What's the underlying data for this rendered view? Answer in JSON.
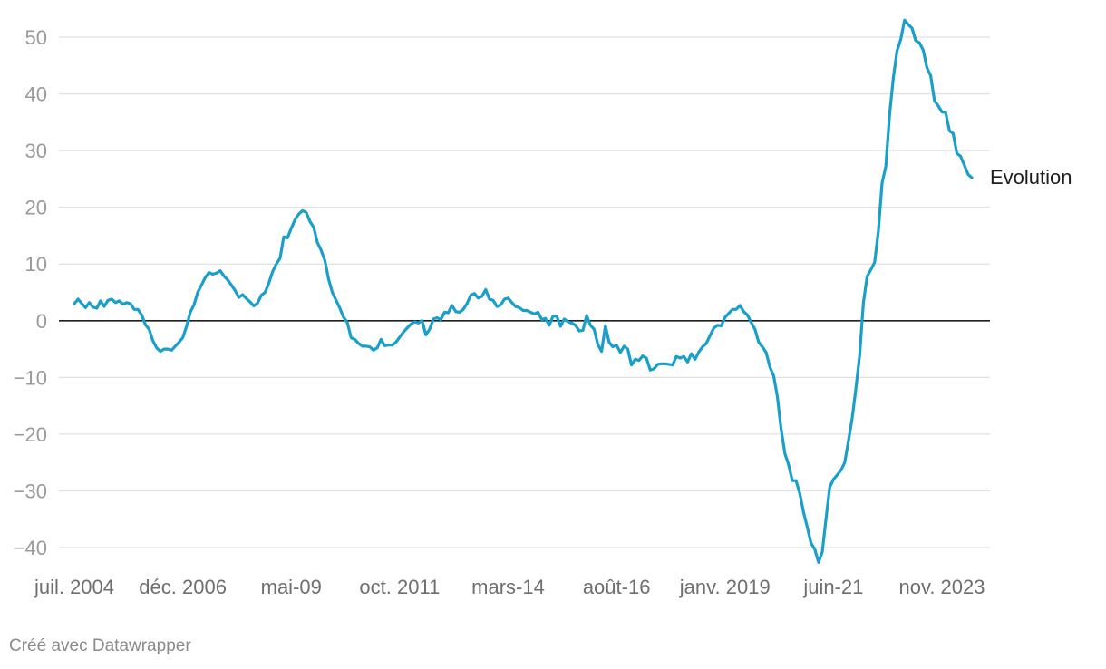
{
  "chart_data": {
    "type": "line",
    "title": "",
    "xlabel": "",
    "ylabel": "",
    "ylim": [
      -45,
      55
    ],
    "yticks": [
      50,
      40,
      30,
      20,
      10,
      0,
      -10,
      -20,
      -30,
      -40
    ],
    "ytick_labels": [
      "50",
      "40",
      "30",
      "20",
      "10",
      "0",
      "−10",
      "−20",
      "−30",
      "−40"
    ],
    "grid": true,
    "x_start": "2004-07",
    "x_end": "2024-10",
    "xticks": [
      {
        "date": "2004-07",
        "label": "juil. 2004"
      },
      {
        "date": "2006-12",
        "label": "déc. 2006"
      },
      {
        "date": "2009-05",
        "label": "mai-09"
      },
      {
        "date": "2011-10",
        "label": "oct. 2011"
      },
      {
        "date": "2014-03",
        "label": "mars-14"
      },
      {
        "date": "2016-08",
        "label": "août-16"
      },
      {
        "date": "2019-01",
        "label": "janv. 2019"
      },
      {
        "date": "2021-06",
        "label": "juin-21"
      },
      {
        "date": "2023-11",
        "label": "nov. 2023"
      }
    ],
    "series": [
      {
        "name": "Evolution",
        "color": "#1a9fcb",
        "points": [
          [
            "2004-07",
            3
          ],
          [
            "2004-08",
            3.8
          ],
          [
            "2004-09",
            3
          ],
          [
            "2004-10",
            2.3
          ],
          [
            "2004-11",
            3.2
          ],
          [
            "2004-12",
            2.4
          ],
          [
            "2005-01",
            2.2
          ],
          [
            "2005-02",
            3.5
          ],
          [
            "2005-03",
            2.5
          ],
          [
            "2005-04",
            3.6
          ],
          [
            "2005-05",
            3.8
          ],
          [
            "2005-06",
            3.2
          ],
          [
            "2005-07",
            3.5
          ],
          [
            "2005-08",
            2.9
          ],
          [
            "2005-09",
            3.2
          ],
          [
            "2005-10",
            3
          ],
          [
            "2005-11",
            2
          ],
          [
            "2005-12",
            2
          ],
          [
            "2006-01",
            1
          ],
          [
            "2006-02",
            -0.7
          ],
          [
            "2006-03",
            -1.5
          ],
          [
            "2006-04",
            -3.5
          ],
          [
            "2006-05",
            -4.8
          ],
          [
            "2006-06",
            -5.4
          ],
          [
            "2006-07",
            -5
          ],
          [
            "2006-08",
            -5
          ],
          [
            "2006-09",
            -5.2
          ],
          [
            "2006-10",
            -4.5
          ],
          [
            "2006-11",
            -3.8
          ],
          [
            "2006-12",
            -3
          ],
          [
            "2007-01",
            -1
          ],
          [
            "2007-02",
            1.5
          ],
          [
            "2007-03",
            2.8
          ],
          [
            "2007-04",
            5
          ],
          [
            "2007-05",
            6.3
          ],
          [
            "2007-06",
            7.6
          ],
          [
            "2007-07",
            8.5
          ],
          [
            "2007-08",
            8.2
          ],
          [
            "2007-09",
            8.4
          ],
          [
            "2007-10",
            8.8
          ],
          [
            "2007-11",
            7.9
          ],
          [
            "2007-12",
            7.2
          ],
          [
            "2008-01",
            6.3
          ],
          [
            "2008-02",
            5.3
          ],
          [
            "2008-03",
            4.1
          ],
          [
            "2008-04",
            4.6
          ],
          [
            "2008-05",
            3.9
          ],
          [
            "2008-06",
            3.3
          ],
          [
            "2008-07",
            2.6
          ],
          [
            "2008-08",
            3.1
          ],
          [
            "2008-09",
            4.5
          ],
          [
            "2008-10",
            5
          ],
          [
            "2008-11",
            6.6
          ],
          [
            "2008-12",
            8.6
          ],
          [
            "2009-01",
            10
          ],
          [
            "2009-02",
            11
          ],
          [
            "2009-03",
            14.8
          ],
          [
            "2009-04",
            14.6
          ],
          [
            "2009-05",
            16.3
          ],
          [
            "2009-06",
            17.8
          ],
          [
            "2009-07",
            18.8
          ],
          [
            "2009-08",
            19.4
          ],
          [
            "2009-09",
            19.1
          ],
          [
            "2009-10",
            17.5
          ],
          [
            "2009-11",
            16.5
          ],
          [
            "2009-12",
            13.8
          ],
          [
            "2010-01",
            12.4
          ],
          [
            "2010-02",
            10.6
          ],
          [
            "2010-03",
            7.3
          ],
          [
            "2010-04",
            5
          ],
          [
            "2010-05",
            3.6
          ],
          [
            "2010-06",
            2.2
          ],
          [
            "2010-07",
            0.6
          ],
          [
            "2010-08",
            -0.3
          ],
          [
            "2010-09",
            -3
          ],
          [
            "2010-10",
            -3.3
          ],
          [
            "2010-11",
            -4
          ],
          [
            "2010-12",
            -4.5
          ],
          [
            "2011-01",
            -4.5
          ],
          [
            "2011-02",
            -4.6
          ],
          [
            "2011-03",
            -5.2
          ],
          [
            "2011-04",
            -4.8
          ],
          [
            "2011-05",
            -3.3
          ],
          [
            "2011-06",
            -4.4
          ],
          [
            "2011-07",
            -4.3
          ],
          [
            "2011-08",
            -4.3
          ],
          [
            "2011-09",
            -3.8
          ],
          [
            "2011-10",
            -2.9
          ],
          [
            "2011-11",
            -2
          ],
          [
            "2011-12",
            -1.3
          ],
          [
            "2012-01",
            -0.6
          ],
          [
            "2012-02",
            -0.2
          ],
          [
            "2012-03",
            -0.4
          ],
          [
            "2012-04",
            0
          ],
          [
            "2012-05",
            -2.5
          ],
          [
            "2012-06",
            -1.5
          ],
          [
            "2012-07",
            0.3
          ],
          [
            "2012-08",
            0.5
          ],
          [
            "2012-09",
            0.2
          ],
          [
            "2012-10",
            1.5
          ],
          [
            "2012-11",
            1.4
          ],
          [
            "2012-12",
            2.7
          ],
          [
            "2013-01",
            1.6
          ],
          [
            "2013-02",
            1.5
          ],
          [
            "2013-03",
            2
          ],
          [
            "2013-04",
            3
          ],
          [
            "2013-05",
            4.5
          ],
          [
            "2013-06",
            4.8
          ],
          [
            "2013-07",
            4
          ],
          [
            "2013-08",
            4.3
          ],
          [
            "2013-09",
            5.5
          ],
          [
            "2013-10",
            3.8
          ],
          [
            "2013-11",
            3.6
          ],
          [
            "2013-12",
            2.5
          ],
          [
            "2014-01",
            2.8
          ],
          [
            "2014-02",
            3.8
          ],
          [
            "2014-03",
            4
          ],
          [
            "2014-04",
            3.2
          ],
          [
            "2014-05",
            2.5
          ],
          [
            "2014-06",
            2.3
          ],
          [
            "2014-07",
            1.8
          ],
          [
            "2014-08",
            1.8
          ],
          [
            "2014-09",
            1.5
          ],
          [
            "2014-10",
            1.2
          ],
          [
            "2014-11",
            1.5
          ],
          [
            "2014-12",
            0.2
          ],
          [
            "2015-01",
            0.4
          ],
          [
            "2015-02",
            -0.8
          ],
          [
            "2015-03",
            0.8
          ],
          [
            "2015-04",
            0.8
          ],
          [
            "2015-05",
            -1
          ],
          [
            "2015-06",
            0.3
          ],
          [
            "2015-07",
            -0.2
          ],
          [
            "2015-08",
            -0.4
          ],
          [
            "2015-09",
            -0.8
          ],
          [
            "2015-10",
            -1.8
          ],
          [
            "2015-11",
            -1.7
          ],
          [
            "2015-12",
            0.9
          ],
          [
            "2016-01",
            -0.8
          ],
          [
            "2016-02",
            -1.5
          ],
          [
            "2016-03",
            -4.2
          ],
          [
            "2016-04",
            -5.4
          ],
          [
            "2016-05",
            -0.9
          ],
          [
            "2016-06",
            -3.8
          ],
          [
            "2016-07",
            -4.6
          ],
          [
            "2016-08",
            -4.3
          ],
          [
            "2016-09",
            -5.6
          ],
          [
            "2016-10",
            -4.5
          ],
          [
            "2016-11",
            -5
          ],
          [
            "2016-12",
            -7.8
          ],
          [
            "2017-01",
            -6.8
          ],
          [
            "2017-02",
            -7
          ],
          [
            "2017-03",
            -6.2
          ],
          [
            "2017-04",
            -6.6
          ],
          [
            "2017-05",
            -8.7
          ],
          [
            "2017-06",
            -8.5
          ],
          [
            "2017-07",
            -7.7
          ],
          [
            "2017-08",
            -7.6
          ],
          [
            "2017-09",
            -7.6
          ],
          [
            "2017-10",
            -7.7
          ],
          [
            "2017-11",
            -7.8
          ],
          [
            "2017-12",
            -6.3
          ],
          [
            "2018-01",
            -6.6
          ],
          [
            "2018-02",
            -6.3
          ],
          [
            "2018-03",
            -7.3
          ],
          [
            "2018-04",
            -5.8
          ],
          [
            "2018-05",
            -6.8
          ],
          [
            "2018-06",
            -5.5
          ],
          [
            "2018-07",
            -4.6
          ],
          [
            "2018-08",
            -4
          ],
          [
            "2018-09",
            -2.6
          ],
          [
            "2018-10",
            -1.3
          ],
          [
            "2018-11",
            -0.8
          ],
          [
            "2018-12",
            -0.9
          ],
          [
            "2019-01",
            0.6
          ],
          [
            "2019-02",
            1.3
          ],
          [
            "2019-03",
            2
          ],
          [
            "2019-04",
            2
          ],
          [
            "2019-05",
            2.7
          ],
          [
            "2019-06",
            1.6
          ],
          [
            "2019-07",
            1
          ],
          [
            "2019-08",
            -0.3
          ],
          [
            "2019-09",
            -1.5
          ],
          [
            "2019-10",
            -3.8
          ],
          [
            "2019-11",
            -4.6
          ],
          [
            "2019-12",
            -5.6
          ],
          [
            "2020-01",
            -8.2
          ],
          [
            "2020-02",
            -9.7
          ],
          [
            "2020-03",
            -13.4
          ],
          [
            "2020-04",
            -19.1
          ],
          [
            "2020-05",
            -23.4
          ],
          [
            "2020-06",
            -25.4
          ],
          [
            "2020-07",
            -28.2
          ],
          [
            "2020-08",
            -28.2
          ],
          [
            "2020-09",
            -30.5
          ],
          [
            "2020-10",
            -33.8
          ],
          [
            "2020-11",
            -36.4
          ],
          [
            "2020-12",
            -39.2
          ],
          [
            "2021-01",
            -40.3
          ],
          [
            "2021-02",
            -42.6
          ],
          [
            "2021-03",
            -40.8
          ],
          [
            "2021-04",
            -35
          ],
          [
            "2021-05",
            -29.3
          ],
          [
            "2021-06",
            -28
          ],
          [
            "2021-07",
            -27.2
          ],
          [
            "2021-08",
            -26.4
          ],
          [
            "2021-09",
            -25
          ],
          [
            "2021-10",
            -21.2
          ],
          [
            "2021-11",
            -17.2
          ],
          [
            "2021-12",
            -12
          ],
          [
            "2022-01",
            -6
          ],
          [
            "2022-02",
            3.2
          ],
          [
            "2022-03",
            7.8
          ],
          [
            "2022-04",
            9
          ],
          [
            "2022-05",
            10.3
          ],
          [
            "2022-06",
            15.8
          ],
          [
            "2022-07",
            24.3
          ],
          [
            "2022-08",
            27.2
          ],
          [
            "2022-09",
            36.4
          ],
          [
            "2022-10",
            42.8
          ],
          [
            "2022-11",
            47.6
          ],
          [
            "2022-12",
            49.6
          ],
          [
            "2023-01",
            53
          ],
          [
            "2023-02",
            52.2
          ],
          [
            "2023-03",
            51.6
          ],
          [
            "2023-04",
            49.4
          ],
          [
            "2023-05",
            49
          ],
          [
            "2023-06",
            47.7
          ],
          [
            "2023-07",
            44.6
          ],
          [
            "2023-08",
            43.2
          ],
          [
            "2023-09",
            38.8
          ],
          [
            "2023-10",
            37.9
          ],
          [
            "2023-11",
            36.8
          ],
          [
            "2023-12",
            36.7
          ],
          [
            "2024-01",
            33.5
          ],
          [
            "2024-02",
            33
          ],
          [
            "2024-03",
            29.5
          ],
          [
            "2024-04",
            29
          ],
          [
            "2024-05",
            27.4
          ],
          [
            "2024-06",
            25.8
          ],
          [
            "2024-07",
            25.2
          ]
        ]
      }
    ]
  },
  "credit": "Créé avec Datawrapper"
}
